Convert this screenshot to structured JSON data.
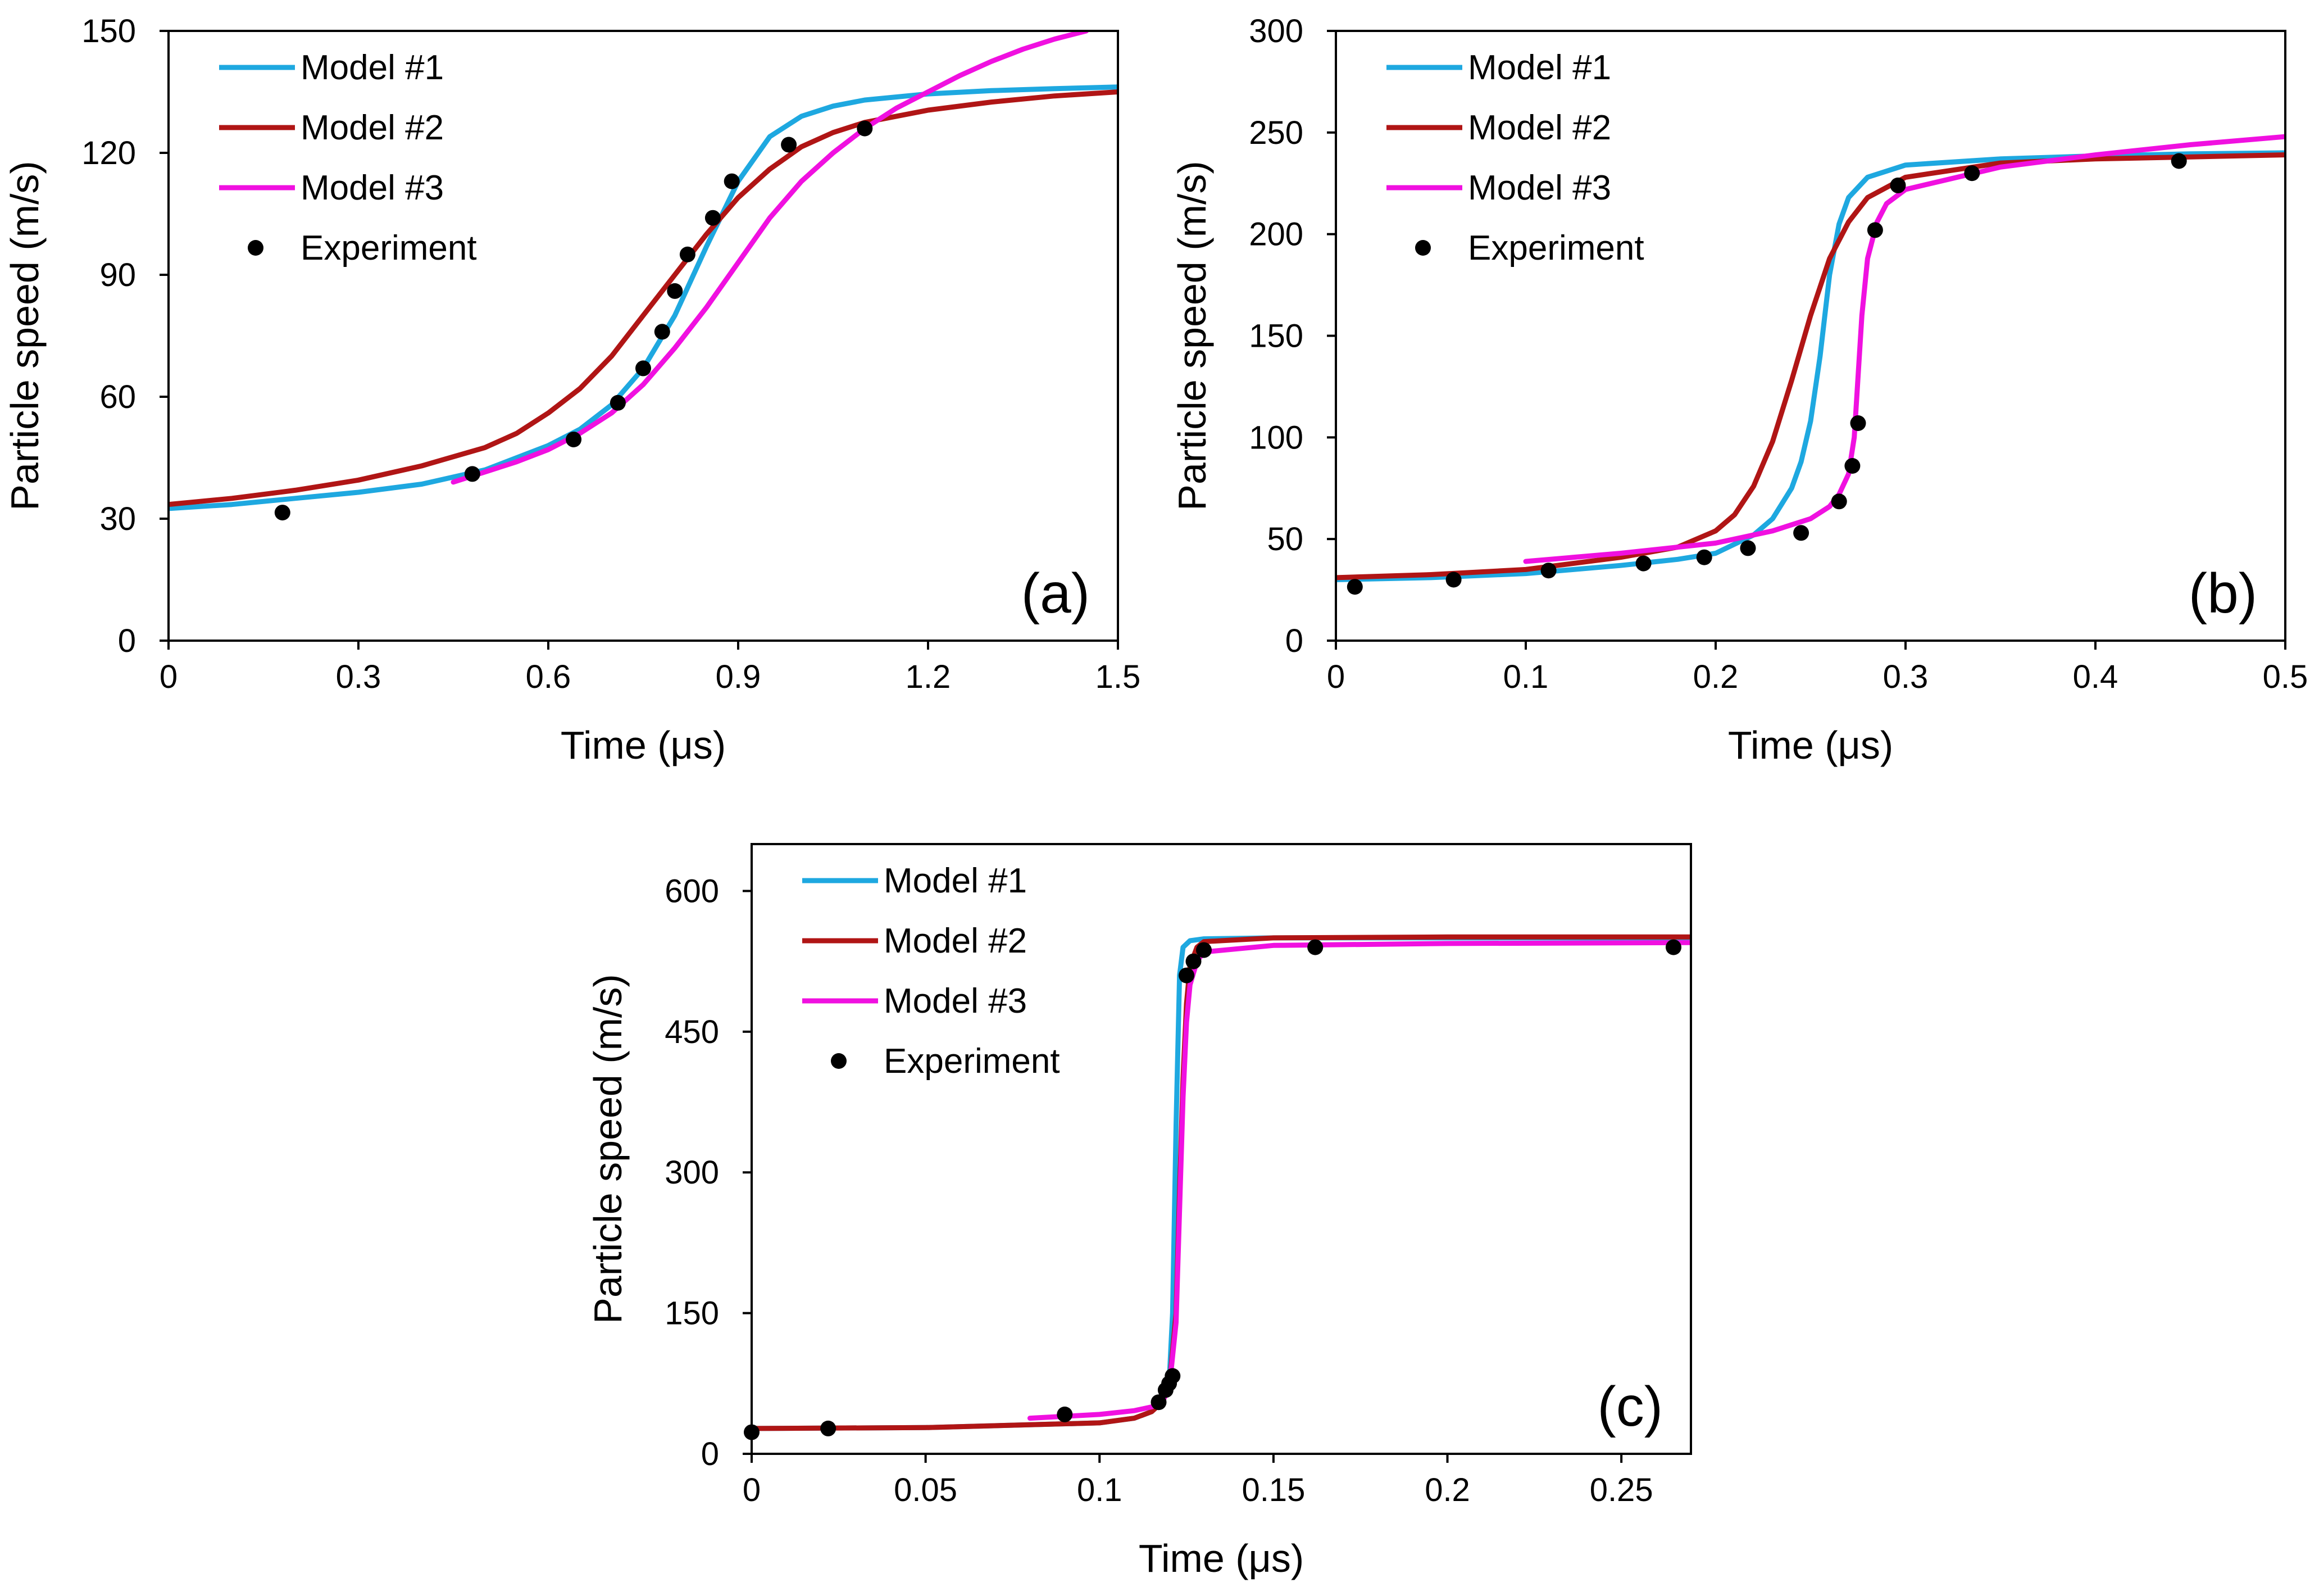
{
  "figure": {
    "colors": {
      "model1": "#1EA8E0",
      "model2": "#B01515",
      "model3": "#F010E0",
      "experiment": "#000000"
    }
  },
  "chart_data": [
    {
      "type": "line",
      "panel_label": "(a)",
      "xlabel": "Time (μs)",
      "ylabel": "Particle speed (m/s)",
      "xlim": [
        0,
        1.5
      ],
      "ylim": [
        0,
        150
      ],
      "x_ticks": [
        0,
        0.3,
        0.6,
        0.9,
        1.2,
        1.5
      ],
      "x_tick_labels": [
        "0",
        "0.3",
        "0.6",
        "0.9",
        "1.2",
        "1.5"
      ],
      "y_ticks": [
        0,
        30,
        60,
        90,
        120,
        150
      ],
      "y_tick_labels": [
        "0",
        "30",
        "60",
        "90",
        "120",
        "150"
      ],
      "grid": false,
      "legend_position": "top-left",
      "series": [
        {
          "name": "Model #1",
          "color_key": "model1",
          "kind": "line",
          "x": [
            0,
            0.1,
            0.2,
            0.3,
            0.4,
            0.5,
            0.6,
            0.65,
            0.7,
            0.75,
            0.8,
            0.85,
            0.9,
            0.95,
            1.0,
            1.05,
            1.1,
            1.2,
            1.3,
            1.4,
            1.5
          ],
          "y": [
            32.5,
            33.5,
            35,
            36.5,
            38.5,
            42,
            48,
            52,
            58,
            67,
            80,
            97,
            113,
            124,
            129,
            131.5,
            133,
            134.5,
            135.3,
            135.8,
            136.2
          ]
        },
        {
          "name": "Model #2",
          "color_key": "model2",
          "kind": "line",
          "x": [
            0,
            0.1,
            0.2,
            0.3,
            0.4,
            0.5,
            0.55,
            0.6,
            0.65,
            0.7,
            0.75,
            0.8,
            0.85,
            0.9,
            0.95,
            1.0,
            1.05,
            1.1,
            1.2,
            1.3,
            1.4,
            1.5
          ],
          "y": [
            33.5,
            35,
            37,
            39.5,
            43,
            47.5,
            51,
            56,
            62,
            70,
            80,
            90,
            100,
            109,
            116,
            121.5,
            125,
            127.5,
            130.5,
            132.5,
            134,
            135
          ]
        },
        {
          "name": "Model #3",
          "color_key": "model3",
          "kind": "line",
          "x": [
            0.45,
            0.5,
            0.55,
            0.6,
            0.65,
            0.7,
            0.75,
            0.8,
            0.85,
            0.9,
            0.95,
            1.0,
            1.05,
            1.1,
            1.15,
            1.2,
            1.25,
            1.3,
            1.35,
            1.4,
            1.45
          ],
          "y": [
            39,
            41.5,
            44,
            47,
            51,
            56,
            63,
            72,
            82,
            93,
            104,
            113,
            120,
            126,
            131,
            135,
            139,
            142.5,
            145.5,
            148,
            150
          ]
        },
        {
          "name": "Experiment",
          "color_key": "experiment",
          "kind": "scatter",
          "x": [
            0.18,
            0.48,
            0.64,
            0.71,
            0.75,
            0.78,
            0.8,
            0.82,
            0.86,
            0.89,
            0.98,
            1.1
          ],
          "y": [
            31.5,
            41,
            49.5,
            58.5,
            67,
            76,
            86,
            95,
            104,
            113,
            122,
            126
          ]
        }
      ]
    },
    {
      "type": "line",
      "panel_label": "(b)",
      "xlabel": "Time (μs)",
      "ylabel": "Particle speed (m/s)",
      "xlim": [
        0,
        0.5
      ],
      "ylim": [
        0,
        300
      ],
      "x_ticks": [
        0,
        0.1,
        0.2,
        0.3,
        0.4,
        0.5
      ],
      "x_tick_labels": [
        "0",
        "0.1",
        "0.2",
        "0.3",
        "0.4",
        "0.5"
      ],
      "y_ticks": [
        0,
        50,
        100,
        150,
        200,
        250,
        300
      ],
      "y_tick_labels": [
        "0",
        "50",
        "100",
        "150",
        "200",
        "250",
        "300"
      ],
      "grid": false,
      "legend_position": "top-left",
      "series": [
        {
          "name": "Model #1",
          "color_key": "model1",
          "kind": "line",
          "x": [
            0,
            0.05,
            0.1,
            0.15,
            0.18,
            0.2,
            0.22,
            0.23,
            0.24,
            0.245,
            0.25,
            0.255,
            0.26,
            0.265,
            0.27,
            0.28,
            0.3,
            0.35,
            0.4,
            0.45,
            0.5
          ],
          "y": [
            30,
            31,
            33,
            37,
            40,
            43,
            52,
            60,
            75,
            88,
            108,
            140,
            180,
            205,
            218,
            228,
            234,
            237,
            238.5,
            239.5,
            240
          ]
        },
        {
          "name": "Model #2",
          "color_key": "model2",
          "kind": "line",
          "x": [
            0,
            0.05,
            0.1,
            0.15,
            0.18,
            0.2,
            0.21,
            0.22,
            0.23,
            0.24,
            0.25,
            0.26,
            0.27,
            0.28,
            0.3,
            0.35,
            0.4,
            0.45,
            0.5
          ],
          "y": [
            31,
            32.5,
            35,
            41,
            46,
            54,
            62,
            76,
            98,
            128,
            160,
            188,
            206,
            218,
            228,
            235,
            237,
            238,
            239
          ]
        },
        {
          "name": "Model #3",
          "color_key": "model3",
          "kind": "line",
          "x": [
            0.1,
            0.15,
            0.2,
            0.23,
            0.25,
            0.26,
            0.265,
            0.27,
            0.273,
            0.275,
            0.277,
            0.28,
            0.285,
            0.29,
            0.3,
            0.35,
            0.4,
            0.45,
            0.5
          ],
          "y": [
            39,
            43,
            48,
            54,
            60,
            66,
            72,
            82,
            100,
            130,
            160,
            188,
            206,
            215,
            222,
            233,
            239,
            244,
            248
          ]
        },
        {
          "name": "Experiment",
          "color_key": "experiment",
          "kind": "scatter",
          "x": [
            0.01,
            0.062,
            0.112,
            0.162,
            0.194,
            0.217,
            0.245,
            0.265,
            0.272,
            0.275,
            0.284,
            0.296,
            0.335,
            0.444
          ],
          "y": [
            26.5,
            30,
            34.5,
            38,
            41,
            45.5,
            53,
            68.5,
            86,
            107,
            202,
            224,
            230,
            236
          ]
        }
      ]
    },
    {
      "type": "line",
      "panel_label": "(c)",
      "xlabel": "Time (μs)",
      "ylabel": "Particle speed (m/s)",
      "xlim": [
        0,
        0.27
      ],
      "ylim": [
        0,
        650
      ],
      "x_ticks": [
        0,
        0.05,
        0.1,
        0.15,
        0.2,
        0.25
      ],
      "x_tick_labels": [
        "0",
        "0.05",
        "0.1",
        "0.15",
        "0.2",
        "0.25"
      ],
      "y_ticks": [
        0,
        150,
        300,
        450,
        600
      ],
      "y_tick_labels": [
        "0",
        "150",
        "300",
        "450",
        "600"
      ],
      "grid": false,
      "legend_position": "top-left",
      "series": [
        {
          "name": "Model #1",
          "color_key": "model1",
          "kind": "line",
          "x": [
            0,
            0.05,
            0.1,
            0.11,
            0.115,
            0.118,
            0.12,
            0.121,
            0.122,
            0.123,
            0.124,
            0.126,
            0.13,
            0.15,
            0.2,
            0.27
          ],
          "y": [
            27,
            28,
            33,
            38,
            45,
            56,
            75,
            150,
            350,
            510,
            540,
            547,
            549,
            550,
            550,
            550
          ]
        },
        {
          "name": "Model #2",
          "color_key": "model2",
          "kind": "line",
          "x": [
            0,
            0.05,
            0.1,
            0.11,
            0.115,
            0.118,
            0.12,
            0.122,
            0.123,
            0.124,
            0.125,
            0.126,
            0.128,
            0.13,
            0.15,
            0.2,
            0.27
          ],
          "y": [
            27,
            28,
            33,
            38,
            45,
            55,
            70,
            150,
            280,
            400,
            480,
            520,
            540,
            546,
            550,
            551,
            551
          ]
        },
        {
          "name": "Model #3",
          "color_key": "model3",
          "kind": "line",
          "x": [
            0.08,
            0.1,
            0.11,
            0.115,
            0.118,
            0.12,
            0.122,
            0.123,
            0.124,
            0.125,
            0.126,
            0.128,
            0.13,
            0.15,
            0.2,
            0.27
          ],
          "y": [
            38,
            42,
            46,
            50,
            56,
            68,
            140,
            260,
            380,
            460,
            500,
            525,
            535,
            542,
            544,
            545
          ]
        },
        {
          "name": "Experiment",
          "color_key": "experiment",
          "kind": "scatter",
          "x": [
            0,
            0.022,
            0.09,
            0.117,
            0.119,
            0.12,
            0.121,
            0.125,
            0.127,
            0.13,
            0.162,
            0.265
          ],
          "y": [
            23,
            27,
            42,
            55,
            68,
            75,
            83,
            510,
            525,
            537,
            540,
            540
          ]
        }
      ]
    }
  ]
}
